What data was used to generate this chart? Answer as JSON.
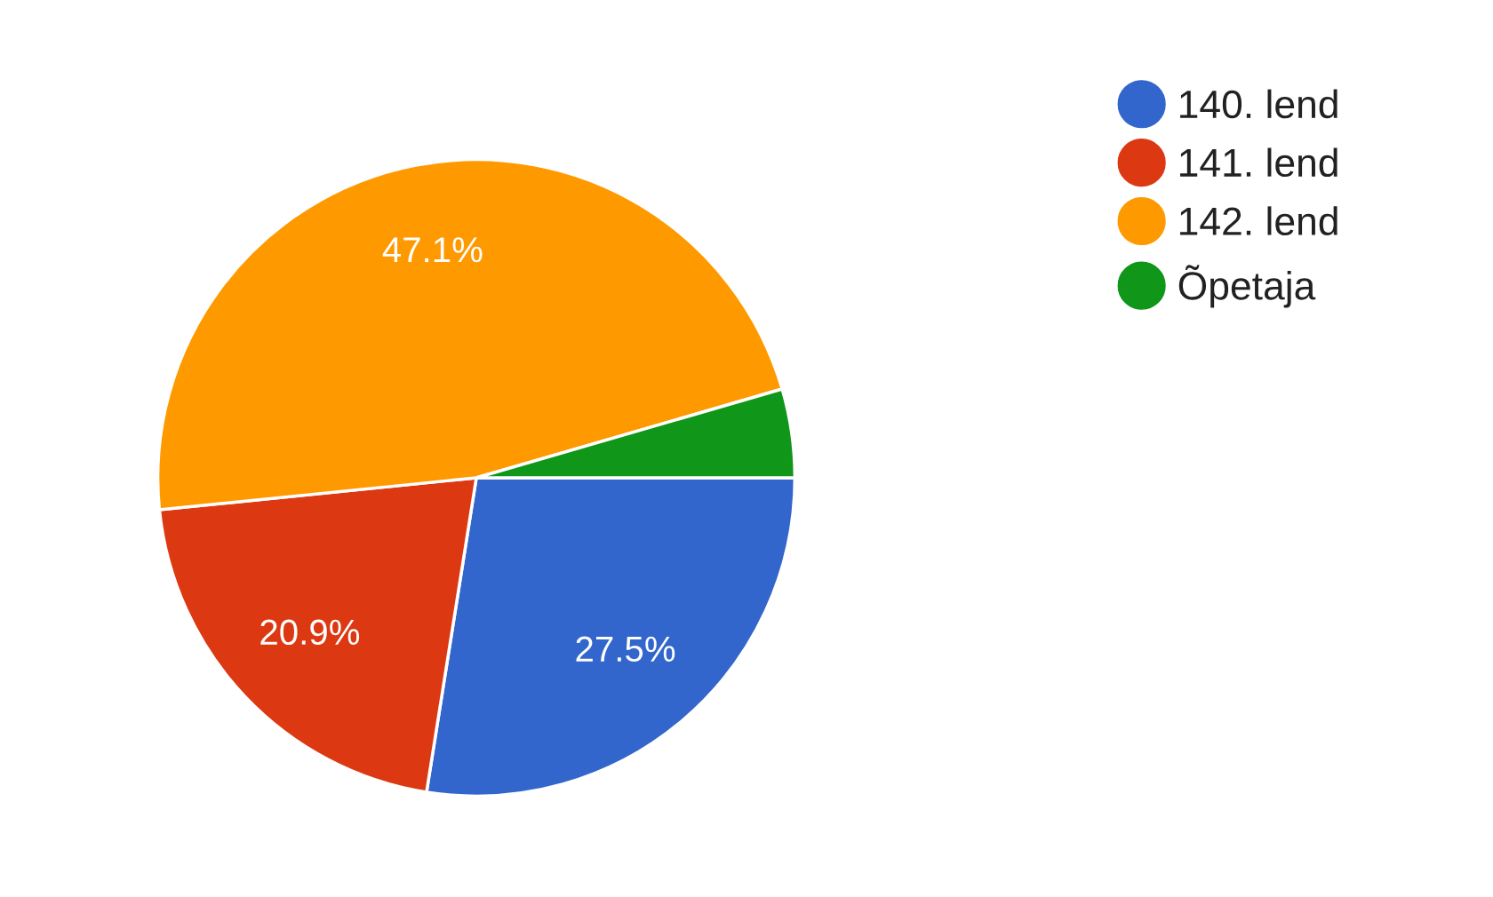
{
  "chart_data": {
    "type": "pie",
    "categories": [
      "140. lend",
      "141. lend",
      "142. lend",
      "Õpetaja"
    ],
    "values": [
      27.5,
      20.9,
      47.1,
      4.5
    ],
    "colors": [
      "#3366cc",
      "#dc3912",
      "#ff9900",
      "#109618"
    ],
    "value_labels": [
      "27.5%",
      "20.9%",
      "47.1%",
      null
    ],
    "legend": "top right"
  }
}
